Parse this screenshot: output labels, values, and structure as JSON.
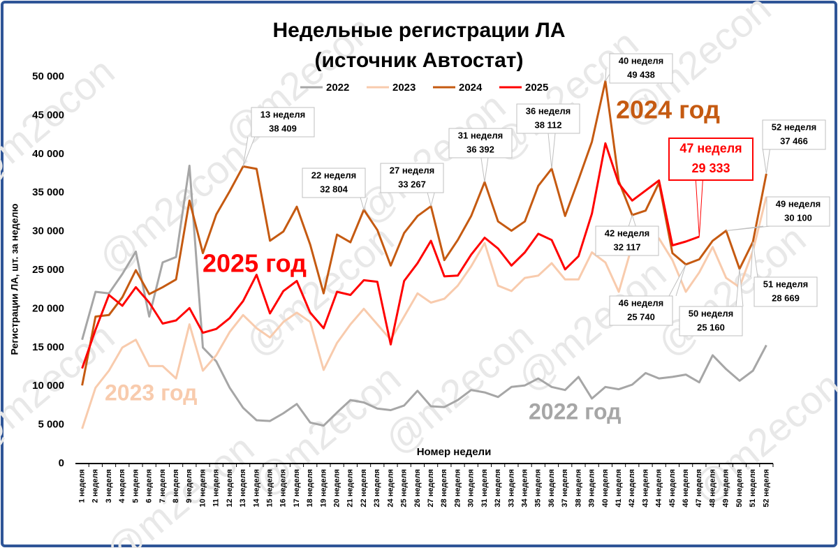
{
  "chart_data": {
    "type": "line",
    "title": [
      "Недельные регистрации ЛА",
      "(источник Автостат)"
    ],
    "watermark": "@m2econ",
    "x_label": "Номер недели",
    "y_label": "Регистрации ЛА, шт. за неделю",
    "categories": [
      "1 неделя",
      "2 неделя",
      "3 неделя",
      "4 неделя",
      "5 неделя",
      "6 неделя",
      "7 неделя",
      "8 неделя",
      "9 неделя",
      "10 неделя",
      "11 неделя",
      "12 неделя",
      "13 неделя",
      "14 неделя",
      "15 неделя",
      "16 неделя",
      "17 неделя",
      "18 неделя",
      "19 неделя",
      "20 неделя",
      "21 неделя",
      "22 неделя",
      "23 неделя",
      "24 неделя",
      "25 неделя",
      "26 неделя",
      "27 неделя",
      "28 неделя",
      "29 неделя",
      "30 неделя",
      "31 неделя",
      "32 неделя",
      "33 неделя",
      "34 неделя",
      "35 неделя",
      "36 неделя",
      "37 неделя",
      "38 неделя",
      "39 неделя",
      "40 неделя",
      "41 неделя",
      "42 неделя",
      "43 неделя",
      "44 неделя",
      "45 неделя",
      "46 неделя",
      "47 неделя",
      "48 неделя",
      "49 неделя",
      "50 неделя",
      "51 неделя",
      "52 неделя"
    ],
    "ylim": [
      0,
      50000
    ],
    "yticks": [
      {
        "value": 0,
        "label": "0"
      },
      {
        "value": 5000,
        "label": "5 000"
      },
      {
        "value": 10000,
        "label": "10 000"
      },
      {
        "value": 15000,
        "label": "15 000"
      },
      {
        "value": 20000,
        "label": "20 000"
      },
      {
        "value": 25000,
        "label": "25 000"
      },
      {
        "value": 30000,
        "label": "30 000"
      },
      {
        "value": 35000,
        "label": "35 000"
      },
      {
        "value": 40000,
        "label": "40 000"
      },
      {
        "value": 45000,
        "label": "45 000"
      },
      {
        "value": 50000,
        "label": "50 000"
      }
    ],
    "grid": false,
    "legend": "top",
    "series": [
      {
        "name": "2022",
        "color": "#a6a6a6",
        "big_label": "2022 год",
        "values": [
          16000,
          22200,
          22000,
          24500,
          27400,
          19000,
          26000,
          26700,
          38500,
          15000,
          13200,
          9800,
          7200,
          5600,
          5500,
          6500,
          7700,
          5300,
          4900,
          6600,
          8200,
          7900,
          7100,
          6900,
          7500,
          9400,
          7400,
          7300,
          8200,
          9500,
          9200,
          8600,
          9900,
          10100,
          11000,
          9900,
          9500,
          11200,
          8400,
          9900,
          9600,
          10200,
          11700,
          11000,
          11200,
          11500,
          10500,
          14000,
          12200,
          10700,
          12000,
          15300
        ]
      },
      {
        "name": "2023",
        "color": "#f8cbad",
        "big_label": "2023 год",
        "values": [
          4500,
          9800,
          12000,
          15000,
          16000,
          12600,
          12600,
          11000,
          18000,
          12000,
          14000,
          17000,
          19200,
          17500,
          16300,
          18300,
          19500,
          18300,
          12100,
          15600,
          18000,
          20000,
          18000,
          16000,
          19000,
          22000,
          20800,
          21300,
          23000,
          25500,
          28500,
          23000,
          22300,
          24000,
          24300,
          25900,
          23800,
          23800,
          27300,
          26000,
          22200,
          28200,
          27600,
          29100,
          26300,
          22200,
          24700,
          28000,
          24000,
          22800,
          27500,
          34500
        ]
      },
      {
        "name": "2024",
        "color": "#c55a11",
        "big_label": "2024 год",
        "values": [
          10100,
          19000,
          19200,
          21500,
          25000,
          21900,
          22800,
          23800,
          34000,
          27200,
          32200,
          35200,
          38409,
          38100,
          28800,
          30000,
          33200,
          28300,
          22000,
          29600,
          28600,
          32804,
          30200,
          25600,
          29800,
          32000,
          33267,
          26300,
          28900,
          32000,
          36392,
          31300,
          30100,
          31300,
          35900,
          38112,
          32000,
          36700,
          41600,
          49438,
          36500,
          32117,
          32700,
          36300,
          27200,
          25740,
          26400,
          28800,
          30100,
          25160,
          28669,
          37466
        ]
      },
      {
        "name": "2025",
        "color": "#ff0000",
        "big_label": "2025 год",
        "values": [
          12300,
          17300,
          21800,
          20400,
          22800,
          20800,
          18100,
          18500,
          20100,
          16900,
          17400,
          18800,
          21000,
          24400,
          19400,
          22300,
          23600,
          19500,
          17500,
          22200,
          21800,
          23700,
          23500,
          15400,
          23600,
          25900,
          28800,
          24200,
          24300,
          27000,
          29200,
          27800,
          25600,
          27300,
          29700,
          28900,
          25100,
          26800,
          32300,
          41400,
          36200,
          34000,
          35300,
          36600,
          28200,
          28700,
          29333,
          null,
          null,
          null,
          null,
          null
        ]
      }
    ],
    "annotations": [
      {
        "lines": [
          "13 неделя",
          "38 409"
        ]
      },
      {
        "lines": [
          "22 неделя",
          "32 804"
        ]
      },
      {
        "lines": [
          "27 неделя",
          "33 267"
        ]
      },
      {
        "lines": [
          "31 неделя",
          "36 392"
        ]
      },
      {
        "lines": [
          "36 неделя",
          "38 112"
        ]
      },
      {
        "lines": [
          "40 неделя",
          "49 438"
        ]
      },
      {
        "lines": [
          "47 неделя",
          "29 333"
        ]
      },
      {
        "lines": [
          "52 неделя",
          "37 466"
        ]
      },
      {
        "lines": [
          "49 неделя",
          "30 100"
        ]
      },
      {
        "lines": [
          "42 неделя",
          "32 117"
        ]
      },
      {
        "lines": [
          "46 неделя",
          "25 740"
        ]
      },
      {
        "lines": [
          "50 неделя",
          "25 160"
        ]
      },
      {
        "lines": [
          "51 неделя",
          "28 669"
        ]
      }
    ]
  }
}
